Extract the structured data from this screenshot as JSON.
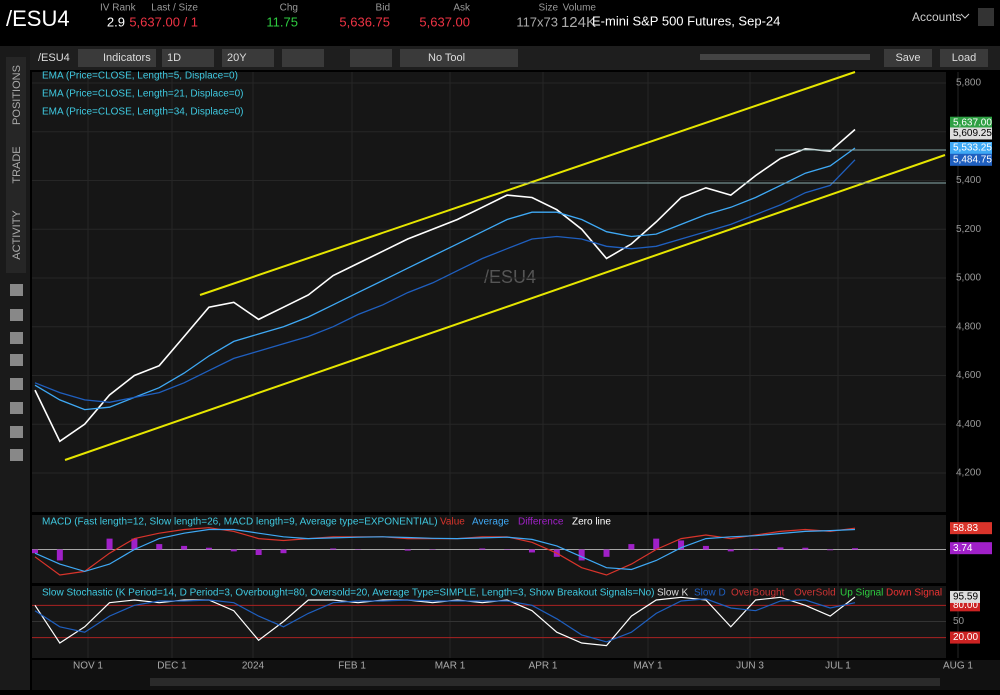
{
  "header": {
    "symbol": "/ESU4",
    "fields": [
      {
        "label": "IV Rank",
        "value": "2.9"
      },
      {
        "label": "Last / Size",
        "value": "5,637.00 / 1"
      },
      {
        "label": "Chg",
        "value": "11.75"
      },
      {
        "label": "Bid",
        "value": "5,636.75"
      },
      {
        "label": "Ask",
        "value": "5,637.00"
      },
      {
        "label": "Size",
        "value": "117x73"
      },
      {
        "label": "Volume",
        "value": "124K"
      }
    ],
    "description": "E-mini S&P 500 Futures, Sep-24",
    "accounts": "Accounts"
  },
  "toolbar": {
    "symbol": "/ESU4",
    "indicators": "Indicators",
    "period": "1D",
    "range": "20Y",
    "tool": "No Tool",
    "save": "Save",
    "load": "Load"
  },
  "sidebar": [
    "POSITIONS",
    "TRADE",
    "ACTIVITY"
  ],
  "time_axis": [
    "NOV 1",
    "DEC 1",
    "2024",
    "FEB 1",
    "MAR 1",
    "APR 1",
    "MAY 1",
    "JUN 3",
    "JUL 1",
    "AUG 1"
  ],
  "chart_data": [
    {
      "type": "line",
      "watermark": "/ESU4",
      "grid": true,
      "ylim": [
        4040,
        5845
      ],
      "yticks": [
        {
          "value": 4200,
          "label": "4,200"
        },
        {
          "value": 4400,
          "label": "4,400"
        },
        {
          "value": 4600,
          "label": "4,600"
        },
        {
          "value": 4800,
          "label": "4,800"
        },
        {
          "value": 5000,
          "label": "5,000"
        },
        {
          "value": 5200,
          "label": "5,200"
        },
        {
          "value": 5400,
          "label": "5,400"
        },
        {
          "value": 5600,
          "label": "5,600"
        },
        {
          "value": 5800,
          "label": "5,800"
        }
      ],
      "last_price": {
        "value": 5637,
        "label": "5,637.00",
        "color": "#2ea043"
      },
      "series": [
        {
          "name": "EMA (Price=CLOSE, Length=5, Displace=0)",
          "color": "#ffffff",
          "last_label": "5,609.25",
          "values": [
            4540,
            4330,
            4400,
            4520,
            4600,
            4640,
            4760,
            4880,
            4900,
            4830,
            4880,
            4930,
            5010,
            5060,
            5110,
            5160,
            5200,
            5240,
            5290,
            5340,
            5330,
            5280,
            5200,
            5080,
            5140,
            5230,
            5330,
            5370,
            5340,
            5420,
            5490,
            5530,
            5520,
            5609.25
          ]
        },
        {
          "name": "EMA (Price=CLOSE, Length=21, Displace=0)",
          "color": "#3fa9f5",
          "last_label": "5,533.25",
          "values": [
            4560,
            4500,
            4460,
            4470,
            4510,
            4550,
            4610,
            4680,
            4740,
            4770,
            4800,
            4840,
            4890,
            4940,
            4990,
            5040,
            5090,
            5140,
            5190,
            5240,
            5270,
            5270,
            5240,
            5190,
            5170,
            5180,
            5220,
            5260,
            5290,
            5330,
            5380,
            5430,
            5460,
            5533.25
          ]
        },
        {
          "name": "EMA (Price=CLOSE, Length=34, Displace=0)",
          "color": "#1f5fbf",
          "last_label": "5,484.75",
          "values": [
            4570,
            4530,
            4500,
            4490,
            4510,
            4530,
            4570,
            4620,
            4670,
            4700,
            4730,
            4760,
            4800,
            4850,
            4890,
            4940,
            4980,
            5030,
            5080,
            5120,
            5160,
            5170,
            5160,
            5130,
            5120,
            5130,
            5160,
            5190,
            5220,
            5260,
            5300,
            5350,
            5380,
            5484.75
          ]
        }
      ]
    },
    {
      "type": "macd",
      "title": "MACD (Fast length=12, Slow length=26, MACD length=9, Average type=EXPONENTIAL)",
      "ylim": [
        -92,
        95
      ],
      "zero_line": "Zero line",
      "series": [
        {
          "name": "Value",
          "color": "#d9342b",
          "values": [
            -20,
            -70,
            -60,
            -10,
            30,
            45,
            55,
            60,
            50,
            30,
            25,
            30,
            35,
            35,
            35,
            30,
            30,
            30,
            35,
            35,
            20,
            -10,
            -50,
            -70,
            -40,
            0,
            30,
            40,
            30,
            40,
            50,
            55,
            50,
            58.83
          ]
        },
        {
          "name": "Average",
          "color": "#3fa9f5",
          "values": [
            -10,
            -40,
            -60,
            -40,
            0,
            30,
            45,
            55,
            55,
            45,
            35,
            30,
            32,
            34,
            35,
            33,
            31,
            30,
            32,
            34,
            28,
            10,
            -20,
            -50,
            -55,
            -30,
            5,
            30,
            35,
            38,
            44,
            50,
            52,
            55.09
          ]
        },
        {
          "name": "Difference",
          "color": "#a020c8",
          "values": [
            -10,
            -30,
            0,
            30,
            30,
            15,
            10,
            5,
            -5,
            -15,
            -10,
            0,
            3,
            1,
            0,
            -3,
            -1,
            0,
            3,
            1,
            -8,
            -20,
            -30,
            -20,
            15,
            30,
            25,
            10,
            -5,
            2,
            6,
            5,
            -2,
            3.74
          ]
        }
      ]
    },
    {
      "type": "stochastic",
      "title": "Slow Stochastic (K Period=14, D Period=3, Overbought=80, Oversold=20, Average Type=SIMPLE, Length=3, Show Breakout Signals=No)",
      "ylim": [
        -18,
        116
      ],
      "yticks": [
        {
          "value": 80,
          "label": "80.00"
        },
        50,
        {
          "value": 20,
          "label": "20.00"
        }
      ],
      "series": [
        {
          "name": "Slow K",
          "color": "#ffffff",
          "values": [
            80,
            10,
            40,
            85,
            90,
            85,
            90,
            90,
            70,
            15,
            50,
            90,
            90,
            85,
            90,
            90,
            85,
            90,
            85,
            90,
            70,
            30,
            10,
            5,
            60,
            90,
            95,
            90,
            40,
            90,
            95,
            80,
            60,
            95.59
          ]
        },
        {
          "name": "Slow D",
          "color": "#1f5fbf",
          "values": [
            70,
            40,
            30,
            60,
            80,
            88,
            88,
            90,
            85,
            60,
            40,
            65,
            85,
            88,
            88,
            90,
            88,
            88,
            88,
            88,
            80,
            55,
            25,
            12,
            30,
            65,
            88,
            92,
            75,
            70,
            88,
            90,
            75,
            85
          ]
        }
      ],
      "other_legend": [
        {
          "name": "OverBought",
          "color": "#c33"
        },
        {
          "name": "OverSold",
          "color": "#c33"
        },
        {
          "name": "Up Signal",
          "color": "#2ecc40"
        },
        {
          "name": "Down Signal",
          "color": "#e33"
        }
      ]
    }
  ]
}
